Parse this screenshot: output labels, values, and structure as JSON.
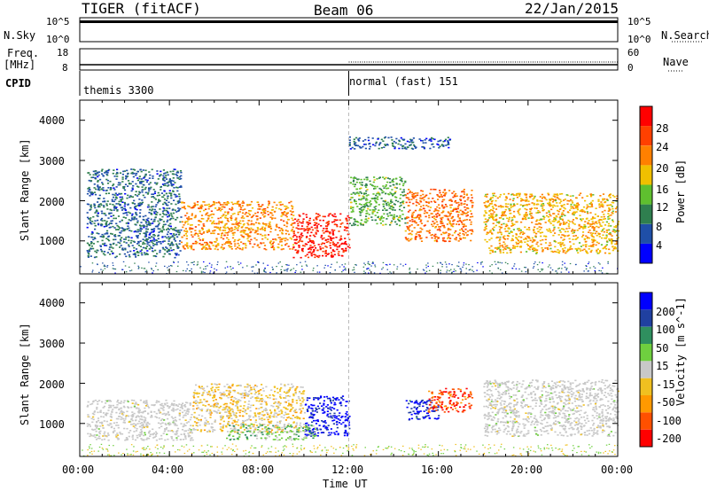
{
  "header": {
    "title_left": "TIGER (fitACF)",
    "title_center": "Beam 06",
    "title_right": "22/Jan/2015"
  },
  "strips": {
    "nsky_label": "N.Sky",
    "nsky_ticks": [
      "10^5",
      "10^0"
    ],
    "nsearch_label": "N.Search",
    "nsearch_ticks": [
      "10^5",
      "10^0"
    ],
    "freq_label_1": "Freq.",
    "freq_label_2": "[MHz]",
    "freq_ticks": [
      "18",
      "8"
    ],
    "nave_label": "Nave",
    "nave_ticks": [
      "60",
      "0"
    ],
    "cpid_label": "CPID",
    "cpid_1": "themis 3300",
    "cpid_2": "normal (fast) 151"
  },
  "colors": {
    "power_scale": [
      "#0000ff",
      "#1f4fa8",
      "#2f7f4f",
      "#5fbf2f",
      "#f0c000",
      "#ff8000",
      "#ff4000",
      "#ff0000"
    ],
    "velocity_scale": [
      "#ff0000",
      "#ff5000",
      "#ff9900",
      "#f0c020",
      "#c8c8c8",
      "#6fcf3f",
      "#2f8f5f",
      "#2040a0",
      "#0000ff"
    ],
    "ground_scatter": "#c8c8c8"
  },
  "chart_data": [
    {
      "type": "heatmap",
      "title": "",
      "xlabel": "",
      "ylabel": "Slant Range [km]",
      "x_ticks": [
        "00:00",
        "04:00",
        "08:00",
        "12:00",
        "16:00",
        "20:00",
        "00:00"
      ],
      "x_range_hours": [
        0,
        24
      ],
      "y_ticks": [
        "1000",
        "2000",
        "3000",
        "4000"
      ],
      "ylim": [
        180,
        4500
      ],
      "colorbar": {
        "label": "Power [dB]",
        "ticks": [
          "28",
          "24",
          "20",
          "16",
          "12",
          "8",
          "4"
        ],
        "range": [
          0,
          30
        ]
      },
      "regions": [
        {
          "t": [
            0.3,
            4.5
          ],
          "range": [
            600,
            2800
          ],
          "power": 7
        },
        {
          "t": [
            4.5,
            9.5
          ],
          "range": [
            800,
            2000
          ],
          "power": 20
        },
        {
          "t": [
            9.5,
            12.0
          ],
          "range": [
            600,
            1700
          ],
          "power": 27
        },
        {
          "t": [
            12.0,
            14.5
          ],
          "range": [
            1400,
            2600
          ],
          "power": 12
        },
        {
          "t": [
            14.5,
            17.5
          ],
          "range": [
            1000,
            2300
          ],
          "power": 22
        },
        {
          "t": [
            18.0,
            24.0
          ],
          "range": [
            700,
            2200
          ],
          "power": 18
        },
        {
          "t": [
            12.0,
            16.5
          ],
          "range": [
            3300,
            3600
          ],
          "power": 6
        }
      ]
    },
    {
      "type": "heatmap",
      "title": "",
      "xlabel": "Time UT",
      "ylabel": "Slant Range [km]",
      "x_ticks": [
        "00:00",
        "04:00",
        "08:00",
        "12:00",
        "16:00",
        "20:00",
        "00:00"
      ],
      "x_range_hours": [
        0,
        24
      ],
      "y_ticks": [
        "1000",
        "2000",
        "3000",
        "4000"
      ],
      "ylim": [
        180,
        4500
      ],
      "colorbar": {
        "label": "Velocity [m s^-1]",
        "ticks": [
          "200",
          "100",
          "50",
          "15",
          "-15",
          "-50",
          "-100",
          "-200"
        ],
        "range": [
          -250,
          250
        ]
      },
      "regions": [
        {
          "t": [
            0.3,
            5.0
          ],
          "range": [
            600,
            1600
          ],
          "velocity": 0,
          "ground_scatter": true
        },
        {
          "t": [
            5.0,
            10.0
          ],
          "range": [
            800,
            2000
          ],
          "velocity": -40
        },
        {
          "t": [
            10.0,
            12.0
          ],
          "range": [
            700,
            1700
          ],
          "velocity": 220
        },
        {
          "t": [
            14.5,
            16.0
          ],
          "range": [
            1100,
            1600
          ],
          "velocity": 200
        },
        {
          "t": [
            15.5,
            17.5
          ],
          "range": [
            1300,
            1900
          ],
          "velocity": -180
        },
        {
          "t": [
            18.0,
            24.0
          ],
          "range": [
            700,
            2100
          ],
          "velocity": 0,
          "ground_scatter": true
        },
        {
          "t": [
            6.5,
            10.5
          ],
          "range": [
            600,
            1000
          ],
          "velocity": 50
        }
      ]
    }
  ]
}
